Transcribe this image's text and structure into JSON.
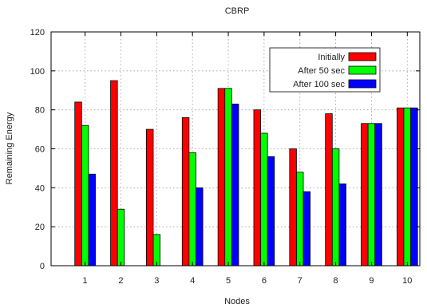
{
  "chart_data": {
    "type": "bar",
    "title": "CBRP",
    "xlabel": "Nodes",
    "ylabel": "Remaining Energy",
    "ylim": [
      0,
      120
    ],
    "yticks": [
      0,
      20,
      40,
      60,
      80,
      100,
      120
    ],
    "grid": true,
    "legend_position": "top-right",
    "categories": [
      "1",
      "2",
      "3",
      "4",
      "5",
      "6",
      "7",
      "8",
      "9",
      "10"
    ],
    "series": [
      {
        "name": "Initially",
        "color": "#ff0000",
        "values": [
          84,
          95,
          70,
          76,
          91,
          80,
          60,
          78,
          73,
          81
        ]
      },
      {
        "name": "After 50 sec",
        "color": "#00ff00",
        "values": [
          72,
          29,
          16,
          58,
          91,
          68,
          48,
          60,
          73,
          81
        ]
      },
      {
        "name": "After 100 sec",
        "color": "#0000ff",
        "values": [
          47,
          0,
          0,
          40,
          83,
          56,
          38,
          42,
          73,
          81
        ]
      }
    ]
  }
}
